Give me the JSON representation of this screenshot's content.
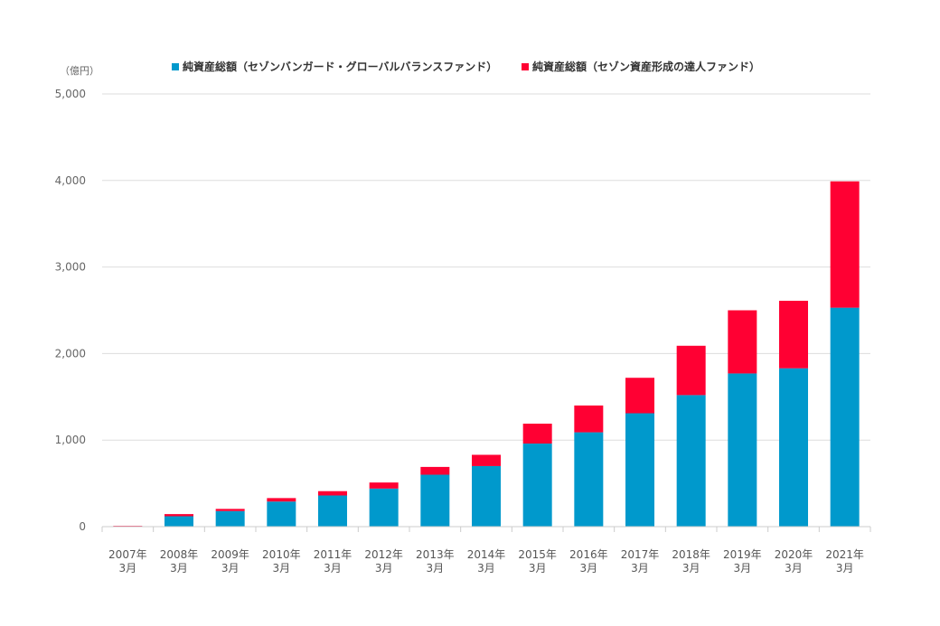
{
  "chart_data": {
    "type": "bar",
    "stacked": true,
    "y_unit": "（億円）",
    "categories": [
      [
        "2007年",
        "3月"
      ],
      [
        "2008年",
        "3月"
      ],
      [
        "2009年",
        "3月"
      ],
      [
        "2010年",
        "3月"
      ],
      [
        "2011年",
        "3月"
      ],
      [
        "2012年",
        "3月"
      ],
      [
        "2013年",
        "3月"
      ],
      [
        "2014年",
        "3月"
      ],
      [
        "2015年",
        "3月"
      ],
      [
        "2016年",
        "3月"
      ],
      [
        "2017年",
        "3月"
      ],
      [
        "2018年",
        "3月"
      ],
      [
        "2019年",
        "3月"
      ],
      [
        "2020年",
        "3月"
      ],
      [
        "2021年",
        "3月"
      ]
    ],
    "series": [
      {
        "name": "純資産総額（セゾンバンガード・グローバルバランスファンド）",
        "color": "#0099cc",
        "values": [
          6,
          120,
          180,
          290,
          360,
          440,
          600,
          700,
          960,
          1090,
          1310,
          1520,
          1770,
          1830,
          2530
        ]
      },
      {
        "name": "純資産総額（セゾン資産形成の達人ファンド）",
        "color": "#ff0033",
        "values": [
          4,
          25,
          25,
          40,
          50,
          70,
          90,
          130,
          230,
          310,
          410,
          570,
          730,
          780,
          1460
        ]
      }
    ],
    "y_ticks": [
      "0",
      "1,000",
      "2,000",
      "3,000",
      "4,000",
      "5,000"
    ],
    "y_tick_values": [
      0,
      1000,
      2000,
      3000,
      4000,
      5000
    ],
    "ylim": [
      0,
      5000
    ],
    "grid": true,
    "legend_position": "top"
  }
}
